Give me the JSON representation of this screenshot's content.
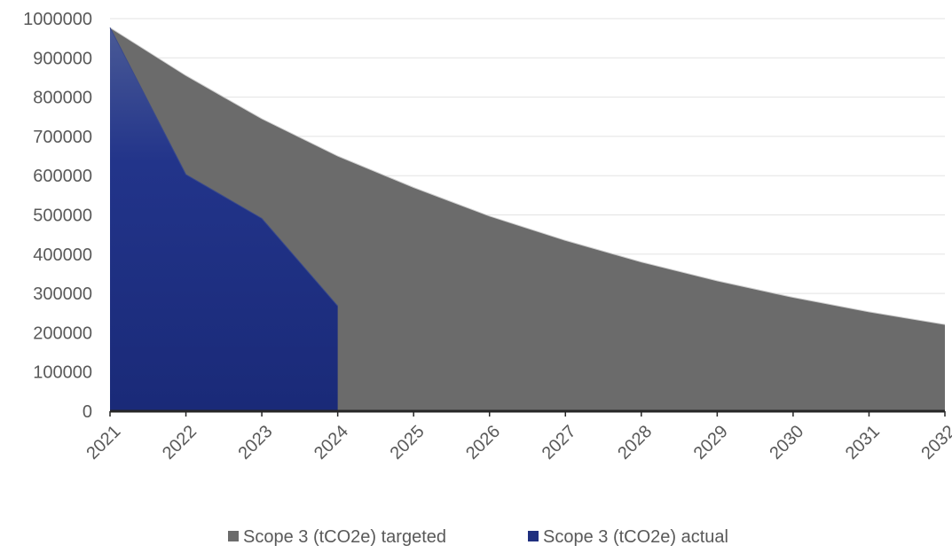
{
  "chart_data": {
    "type": "area",
    "title": "",
    "xlabel": "",
    "ylabel": "",
    "x": [
      "2021",
      "2022",
      "2023",
      "2024",
      "2025",
      "2026",
      "2027",
      "2028",
      "2029",
      "2030",
      "2031",
      "2032"
    ],
    "ylim": [
      0,
      1000000
    ],
    "yticks": [
      0,
      100000,
      200000,
      300000,
      400000,
      500000,
      600000,
      700000,
      800000,
      900000,
      1000000
    ],
    "grid": true,
    "legend_position": "bottom",
    "series": [
      {
        "name": "Scope 3 (tCO2e) targeted",
        "color": "#6b6b6b",
        "values": [
          977000,
          855000,
          745000,
          650000,
          570000,
          497000,
          435000,
          380000,
          332000,
          290000,
          253000,
          221000
        ]
      },
      {
        "name": "Scope 3 (tCO2e) actual",
        "color": "#1f2f7f",
        "values": [
          977000,
          603000,
          491000,
          268000,
          null,
          null,
          null,
          null,
          null,
          null,
          null,
          null
        ]
      }
    ]
  }
}
